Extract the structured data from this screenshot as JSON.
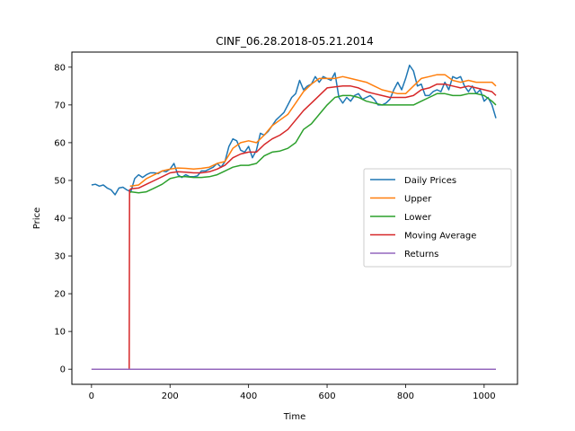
{
  "chart_data": {
    "type": "line",
    "title": "CINF_06.28.2018-05.21.2014",
    "xlabel": "Time",
    "ylabel": "Price",
    "xlim": [
      -50,
      1085
    ],
    "ylim": [
      -4,
      84
    ],
    "xticks": [
      0,
      200,
      400,
      600,
      800,
      1000
    ],
    "yticks": [
      0,
      10,
      20,
      30,
      40,
      50,
      60,
      70,
      80
    ],
    "grid": false,
    "legend_position": "center-right",
    "series": [
      {
        "name": "Daily Prices",
        "color": "#1f77b4",
        "x": [
          0,
          10,
          20,
          30,
          40,
          50,
          60,
          70,
          80,
          90,
          100,
          110,
          120,
          130,
          140,
          150,
          160,
          170,
          180,
          190,
          200,
          210,
          220,
          230,
          240,
          250,
          260,
          270,
          280,
          290,
          300,
          310,
          320,
          330,
          340,
          350,
          360,
          370,
          380,
          390,
          400,
          410,
          420,
          430,
          440,
          450,
          460,
          470,
          480,
          490,
          500,
          510,
          520,
          530,
          540,
          550,
          560,
          570,
          580,
          590,
          600,
          610,
          620,
          630,
          640,
          650,
          660,
          670,
          680,
          690,
          700,
          710,
          720,
          730,
          740,
          750,
          760,
          770,
          780,
          790,
          800,
          810,
          820,
          830,
          840,
          850,
          860,
          870,
          880,
          890,
          900,
          910,
          920,
          930,
          940,
          950,
          960,
          970,
          980,
          990,
          1000,
          1010,
          1020,
          1030
        ],
        "y": [
          48.8,
          49.0,
          48.5,
          48.8,
          48.0,
          47.5,
          46.2,
          48.0,
          48.2,
          47.5,
          47.0,
          50.5,
          51.5,
          50.8,
          51.5,
          52.0,
          52.0,
          51.8,
          52.5,
          52.3,
          53.0,
          54.5,
          51.5,
          50.8,
          51.5,
          51.0,
          51.0,
          51.2,
          52.5,
          52.5,
          53.0,
          53.5,
          54.5,
          53.5,
          55.0,
          59.0,
          61.0,
          60.5,
          58.0,
          57.5,
          59.0,
          56.0,
          58.0,
          62.5,
          62.0,
          63.0,
          64.5,
          66.0,
          67.0,
          68.0,
          70.0,
          72.0,
          73.0,
          76.5,
          74.0,
          75.0,
          75.5,
          77.5,
          76.0,
          77.5,
          77.0,
          76.5,
          78.5,
          72.0,
          70.5,
          72.0,
          71.0,
          72.5,
          73.0,
          71.5,
          72.0,
          72.5,
          71.5,
          70.0,
          70.0,
          70.5,
          71.5,
          74.0,
          76.0,
          74.0,
          77.0,
          80.5,
          79.0,
          75.0,
          75.5,
          72.5,
          72.5,
          73.5,
          74.0,
          73.5,
          76.0,
          74.0,
          77.5,
          77.0,
          77.5,
          75.0,
          73.5,
          75.0,
          73.0,
          74.0,
          71.0,
          72.0,
          70.0,
          66.5
        ]
      },
      {
        "name": "Upper",
        "color": "#ff7f0e",
        "x": [
          98,
          100,
          120,
          140,
          160,
          180,
          200,
          220,
          240,
          260,
          280,
          300,
          320,
          340,
          360,
          380,
          400,
          420,
          440,
          460,
          480,
          500,
          520,
          540,
          560,
          580,
          600,
          620,
          640,
          660,
          680,
          700,
          720,
          740,
          760,
          780,
          800,
          820,
          840,
          860,
          880,
          900,
          920,
          940,
          960,
          980,
          1000,
          1020,
          1030
        ],
        "y": [
          48.5,
          48.5,
          48.8,
          50.5,
          51.5,
          52.5,
          53.0,
          53.3,
          53.2,
          53.0,
          53.2,
          53.5,
          54.5,
          55.0,
          58.5,
          60.0,
          60.5,
          60.0,
          62.0,
          64.5,
          66.0,
          67.5,
          70.5,
          73.5,
          75.5,
          77.0,
          77.0,
          77.0,
          77.5,
          77.0,
          76.5,
          76.0,
          75.0,
          74.0,
          73.5,
          73.0,
          73.0,
          75.0,
          77.0,
          77.5,
          78.0,
          78.0,
          76.5,
          76.0,
          76.5,
          76.0,
          76.0,
          76.0,
          75.0
        ]
      },
      {
        "name": "Lower",
        "color": "#2ca02c",
        "x": [
          98,
          100,
          120,
          140,
          160,
          180,
          200,
          220,
          240,
          260,
          280,
          300,
          320,
          340,
          360,
          380,
          400,
          420,
          440,
          460,
          480,
          500,
          520,
          540,
          560,
          580,
          600,
          620,
          640,
          660,
          680,
          700,
          720,
          740,
          760,
          780,
          800,
          820,
          840,
          860,
          880,
          900,
          920,
          940,
          960,
          980,
          1000,
          1020,
          1030
        ],
        "y": [
          46.8,
          47.0,
          46.7,
          47.0,
          48.0,
          49.0,
          50.5,
          51.0,
          51.0,
          50.8,
          50.8,
          51.0,
          51.5,
          52.5,
          53.5,
          54.0,
          54.0,
          54.5,
          56.5,
          57.5,
          57.8,
          58.5,
          60.0,
          63.5,
          65.0,
          67.5,
          70.0,
          72.0,
          72.5,
          72.5,
          72.0,
          71.0,
          70.5,
          70.0,
          70.0,
          70.0,
          70.0,
          70.0,
          71.0,
          72.0,
          73.0,
          73.0,
          72.5,
          72.5,
          73.0,
          73.0,
          72.5,
          71.0,
          70.0
        ]
      },
      {
        "name": "Moving Average",
        "color": "#d62728",
        "x": [
          0,
          96,
          97,
          98,
          100,
          120,
          140,
          160,
          180,
          200,
          220,
          240,
          260,
          280,
          300,
          320,
          340,
          360,
          380,
          400,
          420,
          440,
          460,
          480,
          500,
          520,
          540,
          560,
          580,
          600,
          620,
          640,
          660,
          680,
          700,
          720,
          740,
          760,
          780,
          800,
          820,
          840,
          860,
          880,
          900,
          920,
          940,
          960,
          980,
          1000,
          1020,
          1030
        ],
        "y": [
          0,
          0,
          47.5,
          47.5,
          47.8,
          48.0,
          49.0,
          50.0,
          51.0,
          52.0,
          52.3,
          52.2,
          52.0,
          52.0,
          52.3,
          53.0,
          54.0,
          56.0,
          57.0,
          57.5,
          57.5,
          59.5,
          61.0,
          62.0,
          63.5,
          66.0,
          68.5,
          70.5,
          72.5,
          74.5,
          74.8,
          75.0,
          75.0,
          74.5,
          73.5,
          73.0,
          72.5,
          72.0,
          72.0,
          72.0,
          72.5,
          74.0,
          74.5,
          75.5,
          75.5,
          75.0,
          74.5,
          75.0,
          74.5,
          74.0,
          73.5,
          72.5
        ]
      },
      {
        "name": "Returns",
        "color": "#9467bd",
        "x": [
          0,
          100,
          200,
          300,
          400,
          500,
          600,
          700,
          800,
          900,
          1000,
          1030
        ],
        "y": [
          0,
          0,
          0,
          0,
          0,
          0,
          0,
          0,
          0,
          0,
          0,
          0
        ]
      }
    ]
  }
}
